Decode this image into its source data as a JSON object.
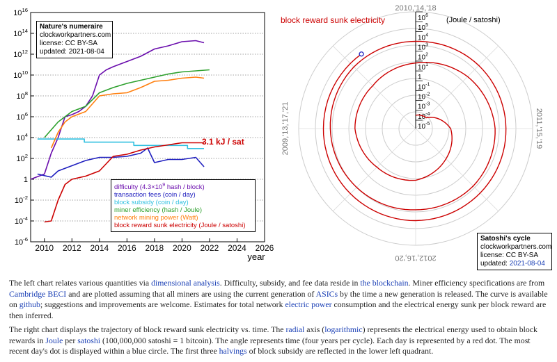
{
  "left_chart": {
    "info_box": {
      "title": "Nature's numeraire",
      "site": "clockworkpartners.com",
      "license": "license: CC BY-SA",
      "updated": "updated: 2021-08-04"
    },
    "annotation": "3.1 kJ / sat"
  },
  "right_chart": {
    "info_box": {
      "title": "Satoshi's cycle",
      "site": "clockworkpartners.com",
      "license": "license: CC BY-SA",
      "updated_prefix": "updated: ",
      "updated_date": "2021-08-04"
    }
  },
  "chart_data": [
    {
      "type": "line",
      "xlabel": "year",
      "ylabel": "",
      "xlim": [
        2009,
        2026
      ],
      "ylim_log10": [
        -6,
        16
      ],
      "x_ticks": [
        "2010",
        "2012",
        "2014",
        "2016",
        "2018",
        "2020",
        "2022",
        "2024",
        "2026"
      ],
      "y_ticks": [
        "10-6",
        "10-4",
        "10-2",
        "1",
        "102",
        "104",
        "106",
        "108",
        "1010",
        "1012",
        "1014",
        "1016"
      ],
      "y_scale": "log",
      "grid": "horizontal dashed",
      "legend_position": "bottom-right",
      "series": [
        {
          "name": "difficulty (4.3×109 hash / block)",
          "color": "#6a0dad",
          "x": [
            2009.0,
            2010.0,
            2010.5,
            2011.0,
            2011.5,
            2012.0,
            2012.5,
            2013.0,
            2013.5,
            2014.0,
            2014.5,
            2015.0,
            2016.0,
            2017.0,
            2018.0,
            2019.0,
            2020.0,
            2021.0,
            2021.6
          ],
          "log10": [
            0,
            0.5,
            2.5,
            4,
            6,
            6.2,
            6.5,
            7,
            8,
            10,
            10.5,
            10.8,
            11.3,
            11.8,
            12.5,
            12.8,
            13.2,
            13.3,
            13.1
          ]
        },
        {
          "name": "transaction fees (coin / day)",
          "color": "#1f1fbf",
          "x": [
            2009.5,
            2010.5,
            2011.0,
            2012.0,
            2013.0,
            2014.0,
            2015.0,
            2016.0,
            2017.0,
            2017.5,
            2018.0,
            2019.0,
            2020.0,
            2021.0,
            2021.6
          ],
          "log10": [
            0.5,
            0.2,
            0.8,
            1.3,
            1.8,
            2.1,
            2.1,
            2.2,
            2.5,
            3.0,
            1.6,
            1.9,
            1.9,
            2.1,
            1.2
          ]
        },
        {
          "name": "block subsidy (coin / day)",
          "color": "#30c0e0",
          "x": [
            2009.5,
            2012.9,
            2012.9,
            2016.5,
            2016.5,
            2020.4,
            2020.4,
            2021.6
          ],
          "log10": [
            3.86,
            3.86,
            3.56,
            3.56,
            3.25,
            3.25,
            2.95,
            2.95
          ]
        },
        {
          "name": "miner efficiency (hash / Joule)",
          "color": "#2ca02c",
          "x": [
            2010.0,
            2011.0,
            2012.0,
            2013.0,
            2014.0,
            2015.0,
            2016.0,
            2017.0,
            2018.0,
            2019.0,
            2020.0,
            2021.0,
            2022.0
          ],
          "log10": [
            4,
            5.5,
            6.5,
            7,
            8.3,
            8.8,
            9.2,
            9.5,
            9.8,
            10.1,
            10.3,
            10.4,
            10.5
          ]
        },
        {
          "name": "network mining power (Watt)",
          "color": "#ff7f0e",
          "x": [
            2010.5,
            2011.0,
            2011.5,
            2012.0,
            2013.0,
            2014.0,
            2015.0,
            2016.0,
            2017.0,
            2018.0,
            2019.0,
            2020.0,
            2021.0,
            2021.6
          ],
          "log10": [
            3,
            4.5,
            5.5,
            6.0,
            6.5,
            8.0,
            8.2,
            8.3,
            8.8,
            9.4,
            9.5,
            9.7,
            9.8,
            9.7
          ]
        },
        {
          "name": "block reward sunk electricity (Joule / satoshi)",
          "color": "#cc0000",
          "x": [
            2010.0,
            2010.5,
            2011.0,
            2011.5,
            2012.0,
            2013.0,
            2014.0,
            2014.5,
            2015.0,
            2016.0,
            2017.0,
            2018.0,
            2019.0,
            2020.0,
            2021.0,
            2021.6
          ],
          "log10": [
            -4.1,
            -4.0,
            -2.0,
            -0.5,
            0,
            0.3,
            0.8,
            1.5,
            2.2,
            2.4,
            2.8,
            3.1,
            3.3,
            3.5,
            3.5,
            3.5
          ]
        }
      ]
    },
    {
      "type": "line",
      "title": "block reward sunk electricity",
      "radial_unit": "(Joule / satoshi)",
      "radial_scale": "log",
      "radial_ticks": [
        "10-5",
        "10-4",
        "10-3",
        "10-2",
        "10-1",
        "1",
        "101",
        "102",
        "103",
        "104",
        "105",
        "106"
      ],
      "angular_labels": [
        "2010,'14,'18",
        "2011,'15,'19",
        "2012,'16,'20",
        "2009,'13,'17,'21"
      ],
      "series": [
        {
          "name": "block reward sunk electricity",
          "color": "#cc0000",
          "t": [
            2010.0,
            2010.5,
            2011.0,
            2011.5,
            2012.0,
            2012.5,
            2013.0,
            2013.5,
            2014.0,
            2014.5,
            2015.0,
            2015.5,
            2016.0,
            2016.5,
            2017.0,
            2017.5,
            2018.0,
            2018.5,
            2019.0,
            2019.5,
            2020.0,
            2020.5,
            2021.0,
            2021.6
          ],
          "log10": [
            -4.5,
            -4.3,
            -2.3,
            -1.5,
            -0.6,
            -0.3,
            0.3,
            0.3,
            0.8,
            1.6,
            2.2,
            2.4,
            2.4,
            2.6,
            2.8,
            3.0,
            3.0,
            3.2,
            3.3,
            3.4,
            3.5,
            3.5,
            3.5,
            3.5
          ]
        }
      ],
      "current_point": {
        "t": 2021.6,
        "log10": 3.5,
        "marker_color": "#1f1fbf"
      }
    }
  ],
  "captions": {
    "p1": [
      {
        "t": "The left chart relates various quantities via "
      },
      {
        "t": "dimensional analysis",
        "link": true
      },
      {
        "t": ". Difficulty, subsidy, and fee data reside in "
      },
      {
        "t": "the blockchain",
        "link": true
      },
      {
        "t": ". Miner efficiency specifications are from "
      },
      {
        "t": "Cambridge BECI",
        "link": true
      },
      {
        "t": " and are plotted assuming that all miners are using the current generation of "
      },
      {
        "t": "ASICs",
        "link": true
      },
      {
        "t": " by the time a new generation is released. The curve is available on "
      },
      {
        "t": "github",
        "link": true
      },
      {
        "t": "; suggestions and improvements are welcome. Estimates for total network "
      },
      {
        "t": "electric power",
        "link": true
      },
      {
        "t": " consumption and the electrical energy sunk per block reward are then inferred."
      }
    ],
    "p2": [
      {
        "t": "The right chart displays the trajectory of block reward sunk electricity vs. time. The "
      },
      {
        "t": "radial",
        "link": true
      },
      {
        "t": " axis ("
      },
      {
        "t": "logarithmic",
        "link": true
      },
      {
        "t": ") represents the electrical energy used to obtain block rewards in "
      },
      {
        "t": "Joule",
        "link": true
      },
      {
        "t": " per "
      },
      {
        "t": "satoshi",
        "link": true
      },
      {
        "t": " (100,000,000 satoshi = 1 bitcoin). The angle represents time (four years per cycle). Each day is represented by a red dot. The most recent day's dot is displayed within a blue circle. The first three "
      },
      {
        "t": "halvings",
        "link": true
      },
      {
        "t": " of block subsidy are reflected in the lower left quadrant."
      }
    ]
  }
}
